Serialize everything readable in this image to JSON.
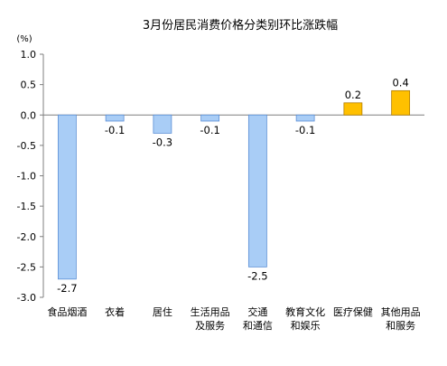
{
  "chart_data": {
    "type": "bar",
    "title": "3月份居民消费价格分类别环比涨跌幅",
    "unit_label": "(%)",
    "categories": [
      [
        "食品烟酒"
      ],
      [
        "衣着"
      ],
      [
        "居住"
      ],
      [
        "生活用品",
        "及服务"
      ],
      [
        "交通",
        "和通信"
      ],
      [
        "教育文化",
        "和娱乐"
      ],
      [
        "医疗保健"
      ],
      [
        "其他用品",
        "和服务"
      ]
    ],
    "values": [
      -2.7,
      -0.1,
      -0.3,
      -0.1,
      -2.5,
      -0.1,
      0.2,
      0.4
    ],
    "data_labels": [
      "-2.7",
      "-0.1",
      "-0.3",
      "-0.1",
      "-2.5",
      "-0.1",
      "0.2",
      "0.4"
    ],
    "ylim": [
      -3.0,
      1.0
    ],
    "yticks": [
      1.0,
      0.5,
      0.0,
      -0.5,
      -1.0,
      -1.5,
      -2.0,
      -2.5,
      -3.0
    ],
    "ytick_labels": [
      "1.0",
      "0.5",
      "0.0",
      "-0.5",
      "-1.0",
      "-1.5",
      "-2.0",
      "-2.5",
      "-3.0"
    ],
    "grid": false,
    "legend": "none",
    "colors": {
      "negative_fill": "#a9cdf6",
      "negative_stroke": "#5b8fd6",
      "positive_fill": "#ffc000",
      "positive_stroke": "#b07c00",
      "axis": "#7f7f7f"
    }
  }
}
